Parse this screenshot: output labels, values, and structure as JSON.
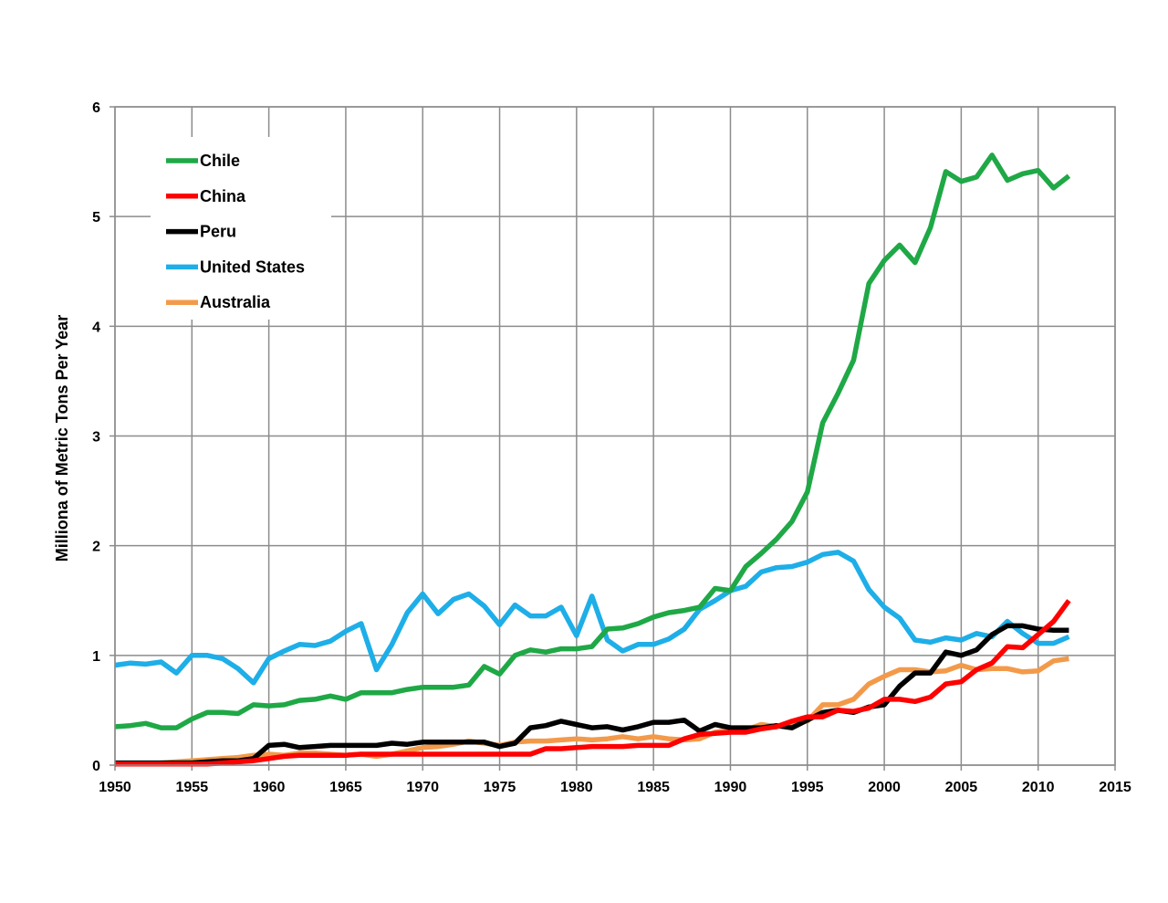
{
  "chart_data": {
    "type": "line",
    "title": "",
    "xlabel": "",
    "ylabel": "Milliona of Metric Tons Per Year",
    "xlim": [
      1950,
      2015
    ],
    "ylim": [
      0,
      6
    ],
    "grid": true,
    "legend_position": "top-left",
    "x_ticks": [
      "1950",
      "1955",
      "1960",
      "1965",
      "1970",
      "1975",
      "1980",
      "1985",
      "1990",
      "1995",
      "2000",
      "2005",
      "2010",
      "2015"
    ],
    "y_ticks": [
      "0",
      "1",
      "2",
      "3",
      "4",
      "5",
      "6"
    ],
    "x": [
      1950,
      1951,
      1952,
      1953,
      1954,
      1955,
      1956,
      1957,
      1958,
      1959,
      1960,
      1961,
      1962,
      1963,
      1964,
      1965,
      1966,
      1967,
      1968,
      1969,
      1970,
      1971,
      1972,
      1973,
      1974,
      1975,
      1976,
      1977,
      1978,
      1979,
      1980,
      1981,
      1982,
      1983,
      1984,
      1985,
      1986,
      1987,
      1988,
      1989,
      1990,
      1991,
      1992,
      1993,
      1994,
      1995,
      1996,
      1997,
      1998,
      1999,
      2000,
      2001,
      2002,
      2003,
      2004,
      2005,
      2006,
      2007,
      2008,
      2009,
      2010,
      2011,
      2012
    ],
    "series": [
      {
        "name": "Chile",
        "color": "#1fa846",
        "values": [
          0.35,
          0.36,
          0.38,
          0.34,
          0.34,
          0.42,
          0.48,
          0.48,
          0.47,
          0.55,
          0.54,
          0.55,
          0.59,
          0.6,
          0.63,
          0.6,
          0.66,
          0.66,
          0.66,
          0.69,
          0.71,
          0.71,
          0.71,
          0.73,
          0.9,
          0.83,
          1.0,
          1.05,
          1.03,
          1.06,
          1.06,
          1.08,
          1.24,
          1.25,
          1.29,
          1.35,
          1.39,
          1.41,
          1.44,
          1.61,
          1.59,
          1.81,
          1.93,
          2.06,
          2.22,
          2.49,
          3.12,
          3.39,
          3.69,
          4.39,
          4.6,
          4.74,
          4.58,
          4.9,
          5.41,
          5.32,
          5.36,
          5.56,
          5.33,
          5.39,
          5.42,
          5.26,
          5.37
        ]
      },
      {
        "name": "China",
        "color": "#ff0000",
        "values": [
          0.01,
          0.01,
          0.01,
          0.01,
          0.01,
          0.01,
          0.01,
          0.02,
          0.03,
          0.04,
          0.06,
          0.08,
          0.09,
          0.09,
          0.09,
          0.09,
          0.1,
          0.1,
          0.1,
          0.1,
          0.1,
          0.1,
          0.1,
          0.1,
          0.1,
          0.1,
          0.1,
          0.1,
          0.15,
          0.15,
          0.16,
          0.17,
          0.17,
          0.17,
          0.18,
          0.18,
          0.18,
          0.24,
          0.28,
          0.29,
          0.3,
          0.3,
          0.33,
          0.35,
          0.4,
          0.44,
          0.44,
          0.5,
          0.49,
          0.52,
          0.6,
          0.6,
          0.58,
          0.62,
          0.74,
          0.76,
          0.87,
          0.93,
          1.08,
          1.07,
          1.19,
          1.31,
          1.5
        ]
      },
      {
        "name": "Peru",
        "color": "#000000",
        "values": [
          0.02,
          0.02,
          0.02,
          0.02,
          0.02,
          0.02,
          0.03,
          0.04,
          0.04,
          0.06,
          0.18,
          0.19,
          0.16,
          0.17,
          0.18,
          0.18,
          0.18,
          0.18,
          0.2,
          0.19,
          0.21,
          0.21,
          0.21,
          0.21,
          0.21,
          0.17,
          0.2,
          0.34,
          0.36,
          0.4,
          0.37,
          0.34,
          0.35,
          0.32,
          0.35,
          0.39,
          0.39,
          0.41,
          0.31,
          0.37,
          0.34,
          0.34,
          0.34,
          0.36,
          0.34,
          0.41,
          0.48,
          0.5,
          0.48,
          0.53,
          0.55,
          0.72,
          0.84,
          0.84,
          1.03,
          1.0,
          1.05,
          1.19,
          1.27,
          1.27,
          1.24,
          1.23,
          1.23
        ]
      },
      {
        "name": "United States",
        "color": "#1eaee8",
        "values": [
          0.91,
          0.93,
          0.92,
          0.94,
          0.84,
          1.0,
          1.0,
          0.97,
          0.88,
          0.75,
          0.97,
          1.04,
          1.1,
          1.09,
          1.13,
          1.22,
          1.29,
          0.87,
          1.1,
          1.39,
          1.56,
          1.38,
          1.51,
          1.56,
          1.45,
          1.28,
          1.46,
          1.36,
          1.36,
          1.44,
          1.18,
          1.54,
          1.14,
          1.04,
          1.1,
          1.1,
          1.15,
          1.24,
          1.42,
          1.5,
          1.59,
          1.63,
          1.76,
          1.8,
          1.81,
          1.85,
          1.92,
          1.94,
          1.86,
          1.6,
          1.44,
          1.34,
          1.14,
          1.12,
          1.16,
          1.14,
          1.2,
          1.17,
          1.31,
          1.2,
          1.11,
          1.11,
          1.17
        ]
      },
      {
        "name": "Australia",
        "color": "#f39a4a",
        "values": [
          0.01,
          0.01,
          0.01,
          0.02,
          0.03,
          0.04,
          0.05,
          0.06,
          0.07,
          0.09,
          0.1,
          0.09,
          0.11,
          0.11,
          0.1,
          0.09,
          0.1,
          0.08,
          0.1,
          0.13,
          0.16,
          0.17,
          0.19,
          0.22,
          0.2,
          0.18,
          0.21,
          0.22,
          0.22,
          0.23,
          0.24,
          0.23,
          0.24,
          0.26,
          0.24,
          0.26,
          0.24,
          0.23,
          0.24,
          0.3,
          0.32,
          0.32,
          0.37,
          0.35,
          0.39,
          0.4,
          0.55,
          0.55,
          0.6,
          0.74,
          0.81,
          0.87,
          0.87,
          0.85,
          0.86,
          0.91,
          0.87,
          0.88,
          0.88,
          0.85,
          0.86,
          0.95,
          0.97
        ]
      }
    ]
  }
}
